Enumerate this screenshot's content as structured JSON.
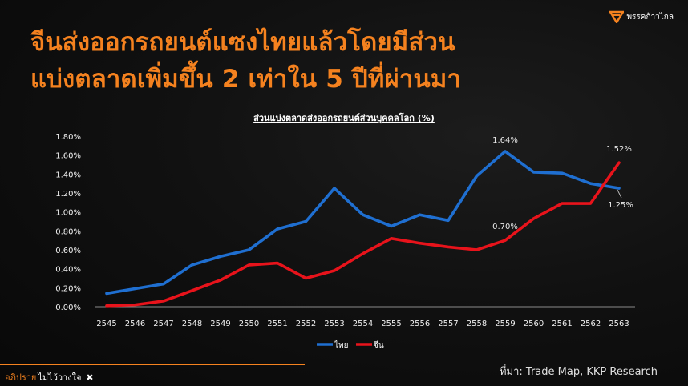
{
  "header": {
    "title_line1": "จีนส่งออกรถยนต์แซงไทยแล้วโดยมีส่วน",
    "title_line2": "แบ่งตลาดเพิ่มขึ้น 2 เท่าใน 5 ปีที่ผ่านมา",
    "logo_text": "พรรคก้าวไกล"
  },
  "colors": {
    "accent": "#f5821f",
    "thai": "#1f6fd1",
    "china": "#e8131b"
  },
  "chart_data": {
    "type": "line",
    "title": "ส่วนแบ่งตลาดส่งออกรถยนต์ส่วนบุคคลโลก (%)",
    "x": [
      "2545",
      "2546",
      "2547",
      "2548",
      "2549",
      "2550",
      "2551",
      "2552",
      "2553",
      "2554",
      "2555",
      "2556",
      "2557",
      "2558",
      "2559",
      "2560",
      "2561",
      "2562",
      "2563"
    ],
    "y_ticks": [
      "0.00%",
      "0.20%",
      "0.40%",
      "0.60%",
      "0.80%",
      "1.00%",
      "1.20%",
      "1.40%",
      "1.60%",
      "1.80%"
    ],
    "ylim": [
      0,
      1.8
    ],
    "grid": false,
    "legend": "bottom-center",
    "series": [
      {
        "name": "ไทย",
        "color": "#1f6fd1",
        "values": [
          0.14,
          0.19,
          0.24,
          0.44,
          0.53,
          0.6,
          0.82,
          0.9,
          1.25,
          0.97,
          0.85,
          0.97,
          0.91,
          1.38,
          1.64,
          1.42,
          1.41,
          1.3,
          1.25
        ]
      },
      {
        "name": "จีน",
        "color": "#e8131b",
        "values": [
          0.01,
          0.02,
          0.06,
          0.17,
          0.28,
          0.44,
          0.46,
          0.3,
          0.38,
          0.56,
          0.72,
          0.67,
          0.63,
          0.6,
          0.7,
          0.93,
          1.09,
          1.09,
          1.52
        ]
      }
    ],
    "data_labels": [
      {
        "series": "ไทย",
        "x": "2559",
        "text": "1.64%"
      },
      {
        "series": "ไทย",
        "x": "2563",
        "text": "1.25%"
      },
      {
        "series": "จีน",
        "x": "2559",
        "text": "0.70%"
      },
      {
        "series": "จีน",
        "x": "2563",
        "text": "1.52%"
      }
    ]
  },
  "source": "ที่มา: Trade Map, KKP Research",
  "footer": {
    "part1": "อภิปราย",
    "part2": "ไม่ไว้วางใจ",
    "mark": "✖"
  }
}
